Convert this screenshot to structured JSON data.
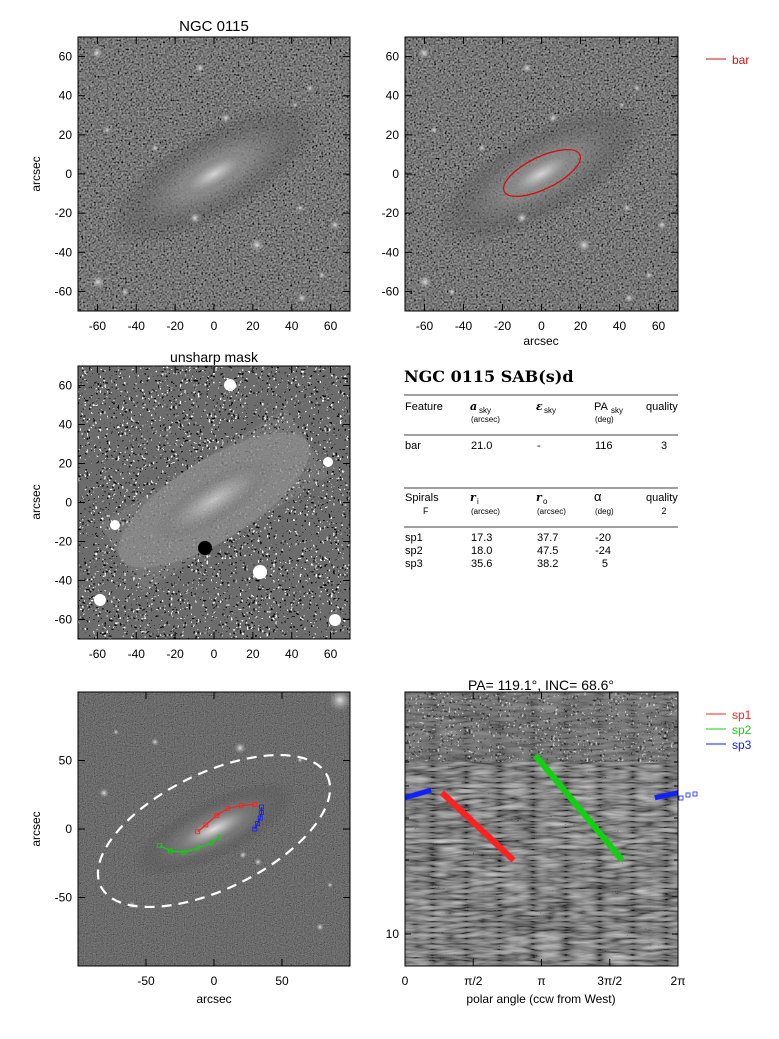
{
  "galaxy_name": "NGC 0115",
  "panels": {
    "p1": {
      "title": "NGC 0115",
      "ylabel": "arcsec",
      "xlabel": ""
    },
    "p2": {
      "title": "",
      "ylabel": "",
      "xlabel": "arcsec",
      "legend": [
        {
          "label": "bar",
          "color": "#d01010"
        }
      ]
    },
    "p3": {
      "title": "unsharp mask",
      "ylabel": "arcsec",
      "xlabel": ""
    },
    "p5": {
      "title": "",
      "ylabel": "arcsec",
      "xlabel": "arcsec"
    },
    "p6": {
      "title": "PA= 119.1°, INC=  68.6°",
      "xlabel": "polar angle (ccw from West)",
      "legend": [
        {
          "label": "sp1",
          "color": "#ff2020"
        },
        {
          "label": "sp2",
          "color": "#10d010"
        },
        {
          "label": "sp3",
          "color": "#1020ff"
        }
      ]
    }
  },
  "table": {
    "heading": "NGC 0115  SAB(s)d",
    "bar_section": {
      "headers": [
        {
          "main": "Feature",
          "sub": "",
          "subsub": ""
        },
        {
          "main": "a",
          "sub": "sky",
          "subsub": "(arcsec)"
        },
        {
          "main": "ε",
          "sub": "sky",
          "subsub": ""
        },
        {
          "main": "PA",
          "sub": "sky",
          "subsub": "(deg)"
        },
        {
          "main": "quality",
          "sub": "",
          "subsub": ""
        }
      ],
      "rows": [
        [
          "bar",
          "21.0",
          "-",
          "116",
          "3"
        ]
      ]
    },
    "spiral_section": {
      "headers": [
        {
          "main": "Spirals",
          "sub": "",
          "subsub": "F"
        },
        {
          "main": "r",
          "sub": "i",
          "subsub": "(arcsec)"
        },
        {
          "main": "r",
          "sub": "o",
          "subsub": "(arcsec)"
        },
        {
          "main": "α",
          "sub": "",
          "subsub": "(deg)"
        },
        {
          "main": "quality",
          "sub": "",
          "subsub": "2"
        }
      ],
      "rows": [
        [
          "sp1",
          "17.3",
          "37.7",
          "-20"
        ],
        [
          "sp2",
          "18.0",
          "47.5",
          "-24"
        ],
        [
          "sp3",
          "35.6",
          "38.2",
          "5"
        ]
      ]
    }
  },
  "chart_data": [
    {
      "type": "image",
      "panel": "p1",
      "title": "NGC 0115",
      "ylabel": "arcsec",
      "xlim": [
        -70,
        70
      ],
      "ylim": [
        -70,
        70
      ],
      "xticks": [
        -60,
        -40,
        -20,
        0,
        20,
        40,
        60
      ],
      "yticks": [
        -60,
        -40,
        -20,
        0,
        20,
        40,
        60
      ]
    },
    {
      "type": "image",
      "panel": "p2",
      "xlabel": "arcsec",
      "xlim": [
        -70,
        70
      ],
      "ylim": [
        -70,
        70
      ],
      "xticks": [
        -60,
        -40,
        -20,
        0,
        20,
        40,
        60
      ],
      "yticks": [
        -60,
        -40,
        -20,
        0,
        20,
        40,
        60
      ],
      "overlay": {
        "label": "bar",
        "a_sky": 21.0,
        "PA_deg": 116,
        "color": "#d01010"
      }
    },
    {
      "type": "image",
      "panel": "p3",
      "title": "unsharp mask",
      "ylabel": "arcsec",
      "xlim": [
        -70,
        70
      ],
      "ylim": [
        -70,
        70
      ],
      "xticks": [
        -60,
        -40,
        -20,
        0,
        20,
        40,
        60
      ],
      "yticks": [
        -60,
        -40,
        -20,
        0,
        20,
        40,
        60
      ]
    },
    {
      "type": "image",
      "panel": "p5",
      "xlabel": "arcsec",
      "ylabel": "arcsec",
      "xlim": [
        -100,
        100
      ],
      "ylim": [
        -100,
        100
      ],
      "xticks": [
        -50,
        0,
        50
      ],
      "yticks": [
        -50,
        0,
        50
      ],
      "arms": [
        {
          "name": "sp1",
          "color": "#ff2020",
          "points": [
            [
              -12,
              -2
            ],
            [
              -6,
              3
            ],
            [
              2,
              10
            ],
            [
              10,
              15
            ],
            [
              20,
              17
            ],
            [
              30,
              18
            ]
          ]
        },
        {
          "name": "sp2",
          "color": "#10d010",
          "points": [
            [
              -40,
              -12
            ],
            [
              -32,
              -16
            ],
            [
              -22,
              -17
            ],
            [
              -12,
              -14
            ],
            [
              -2,
              -10
            ],
            [
              4,
              -6
            ]
          ]
        },
        {
          "name": "sp3",
          "color": "#1020ff",
          "points": [
            [
              35,
              16
            ],
            [
              35,
              12
            ],
            [
              34,
              8
            ],
            [
              32,
              4
            ],
            [
              30,
              0
            ]
          ]
        }
      ]
    },
    {
      "type": "line",
      "panel": "p6",
      "title": "PA= 119.1°, INC=  68.6°",
      "xlabel": "polar angle (ccw from West)",
      "xticks": [
        "0",
        "π/2",
        "π",
        "3π/2",
        "2π"
      ],
      "xlim": [
        0,
        6.2832
      ],
      "ylabel_tick": "10",
      "y_scale": "log",
      "series": [
        {
          "name": "sp1",
          "color": "#ff2020",
          "x": [
            0.85,
            2.5
          ],
          "y": [
            42,
            22
          ]
        },
        {
          "name": "sp2",
          "color": "#10d010",
          "x": [
            3.0,
            5.0
          ],
          "y": [
            60,
            22
          ]
        },
        {
          "name": "sp3",
          "color": "#1020ff",
          "x": [
            0.0,
            0.6,
            5.75,
            6.2832
          ],
          "y": [
            40,
            43,
            40,
            42
          ]
        }
      ]
    }
  ]
}
